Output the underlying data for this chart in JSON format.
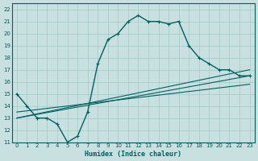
{
  "xlabel": "Humidex (Indice chaleur)",
  "ylabel": "",
  "bg_color": "#c8e0e0",
  "grid_color": "#a0c8c8",
  "line_color": "#006060",
  "xlim": [
    -0.5,
    23.5
  ],
  "ylim": [
    11,
    22.5
  ],
  "yticks": [
    11,
    12,
    13,
    14,
    15,
    16,
    17,
    18,
    19,
    20,
    21,
    22
  ],
  "xticks": [
    0,
    1,
    2,
    3,
    4,
    5,
    6,
    7,
    8,
    9,
    10,
    11,
    12,
    13,
    14,
    15,
    16,
    17,
    18,
    19,
    20,
    21,
    22,
    23
  ],
  "main_x": [
    0,
    1,
    2,
    3,
    4,
    5,
    6,
    7,
    8,
    9,
    10,
    11,
    12,
    13,
    14,
    15,
    16,
    17,
    18,
    19,
    20,
    21,
    22,
    23
  ],
  "main_y": [
    15,
    14,
    13,
    13,
    12.5,
    11,
    11.5,
    13.5,
    17.5,
    19.5,
    20,
    21,
    21.5,
    21,
    21,
    20.8,
    21,
    19,
    18,
    17.5,
    17,
    17,
    16.5,
    16.5
  ],
  "line1_x": [
    0,
    23
  ],
  "line1_y": [
    13,
    17
  ],
  "line2_x": [
    0,
    23
  ],
  "line2_y": [
    13,
    16.5
  ],
  "line3_x": [
    0,
    23
  ],
  "line3_y": [
    13.5,
    15.8
  ]
}
